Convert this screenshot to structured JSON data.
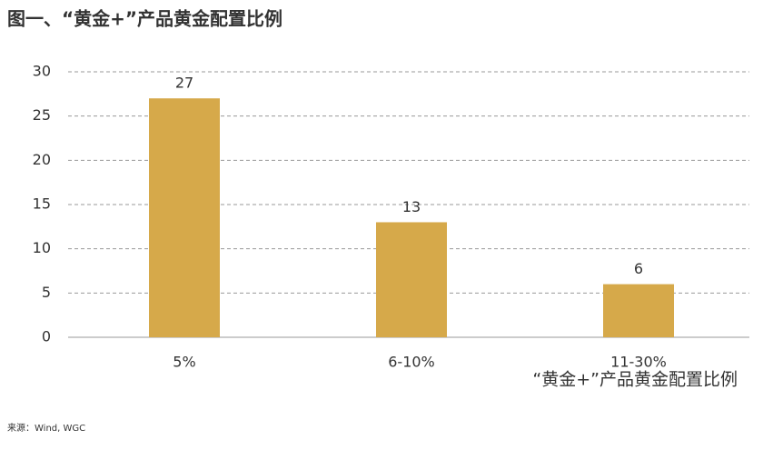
{
  "chart_data": {
    "type": "bar",
    "title": "图一、“黄金+”产品黄金配置比例",
    "x_label": "“黄金+”产品黄金配置比例",
    "source": "来源：Wind, WGC",
    "categories": [
      "5%",
      "6-10%",
      "11-30%"
    ],
    "values": [
      27,
      13,
      6
    ],
    "color": "#d6a94a",
    "ylim": [
      0,
      30
    ],
    "yticks": [
      0,
      5,
      10,
      15,
      20,
      25,
      30
    ],
    "grid": true,
    "data_labels": true
  }
}
